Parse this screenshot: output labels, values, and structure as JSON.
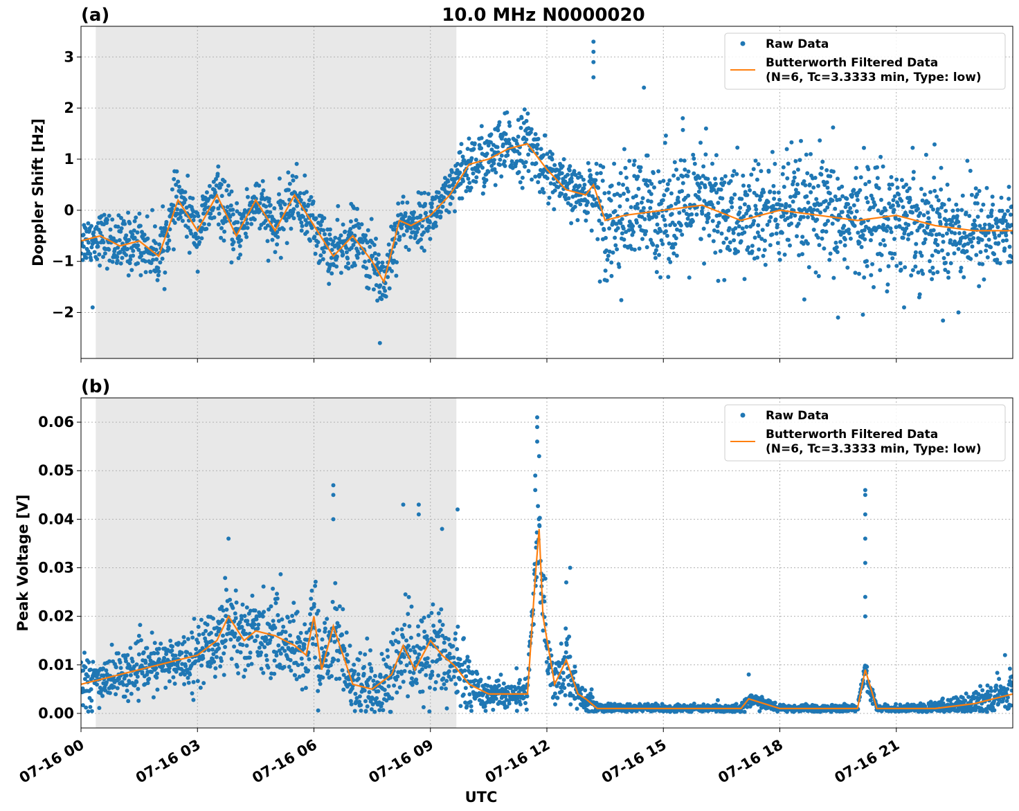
{
  "title": "10.0 MHz N0000020",
  "colors": {
    "raw": "#1f77b4",
    "filtered": "#ff7f0e",
    "night": "#e8e8e8"
  },
  "legend": {
    "raw": "Raw Data",
    "filtered_line1": "Butterworth Filtered Data",
    "filtered_line2": "(N=6, Tc=3.3333 min, Type: low)"
  },
  "chart_data": [
    {
      "type": "scatter",
      "panel_label": "(a)",
      "ylabel": "Doppler Shift [Hz]",
      "xlim_hours": [
        0,
        24
      ],
      "ylim": [
        -2.9,
        3.6
      ],
      "yticks": [
        -2,
        -1,
        0,
        1,
        2,
        3
      ],
      "ytick_labels": [
        "−2",
        "−1",
        "0",
        "1",
        "2",
        "3"
      ],
      "grid": true,
      "legend_position": "top-right",
      "shaded_interval_hours": [
        0.38,
        9.67
      ],
      "series": [
        {
          "name": "Butterworth Filtered Data",
          "kind": "line",
          "x_hours": [
            0,
            0.5,
            1,
            1.5,
            2,
            2.5,
            3,
            3.5,
            4,
            4.5,
            5,
            5.5,
            6,
            6.5,
            7,
            7.5,
            7.8,
            8.2,
            8.5,
            9,
            9.5,
            10,
            10.5,
            11,
            11.5,
            12,
            12.5,
            13,
            13.2,
            13.5,
            14,
            15,
            16,
            17,
            18,
            19,
            20,
            21,
            22,
            23,
            24
          ],
          "y": [
            -0.6,
            -0.5,
            -0.7,
            -0.6,
            -0.9,
            0.2,
            -0.4,
            0.3,
            -0.5,
            0.2,
            -0.4,
            0.3,
            -0.3,
            -0.9,
            -0.5,
            -1.0,
            -1.4,
            -0.2,
            -0.3,
            -0.1,
            0.3,
            0.9,
            1.0,
            1.2,
            1.3,
            0.8,
            0.4,
            0.3,
            0.5,
            -0.2,
            -0.1,
            0.0,
            0.1,
            -0.2,
            0.0,
            -0.1,
            -0.2,
            -0.1,
            -0.3,
            -0.4,
            -0.4
          ]
        },
        {
          "name": "Raw Data",
          "kind": "scatter",
          "spread": [
            0.3,
            0.3,
            0.35,
            0.35,
            0.35,
            0.35,
            0.35,
            0.35,
            0.35,
            0.35,
            0.35,
            0.35,
            0.35,
            0.35,
            0.35,
            0.4,
            0.45,
            0.35,
            0.3,
            0.3,
            0.3,
            0.4,
            0.4,
            0.4,
            0.4,
            0.35,
            0.3,
            0.3,
            0.4,
            0.7,
            0.7,
            0.7,
            0.7,
            0.7,
            0.7,
            0.7,
            0.7,
            0.7,
            0.7,
            0.6,
            0.5
          ],
          "outliers": [
            [
              13.2,
              3.3
            ],
            [
              13.2,
              3.1
            ],
            [
              13.2,
              2.9
            ],
            [
              13.2,
              2.6
            ],
            [
              14.5,
              2.4
            ],
            [
              15.5,
              1.8
            ],
            [
              16.1,
              1.6
            ],
            [
              19.5,
              -2.1
            ],
            [
              21.2,
              -1.9
            ],
            [
              22.6,
              -2.0
            ],
            [
              0.3,
              -1.9
            ],
            [
              7.7,
              -2.6
            ]
          ]
        }
      ]
    },
    {
      "type": "scatter",
      "panel_label": "(b)",
      "xlabel": "UTC",
      "ylabel": "Peak Voltage [V]",
      "xlim_hours": [
        0,
        24
      ],
      "ylim": [
        -0.003,
        0.065
      ],
      "yticks": [
        0.0,
        0.01,
        0.02,
        0.03,
        0.04,
        0.05,
        0.06
      ],
      "ytick_labels": [
        "0.00",
        "0.01",
        "0.02",
        "0.03",
        "0.04",
        "0.05",
        "0.06"
      ],
      "xticks_hours": [
        0,
        3,
        6,
        9,
        12,
        15,
        18,
        21
      ],
      "xtick_labels": [
        "07-16 00",
        "07-16 03",
        "07-16 06",
        "07-16 09",
        "07-16 12",
        "07-16 15",
        "07-16 18",
        "07-16 21"
      ],
      "grid": true,
      "legend_position": "top-right",
      "shaded_interval_hours": [
        0.38,
        9.67
      ],
      "series": [
        {
          "name": "Butterworth Filtered Data",
          "kind": "line",
          "x_hours": [
            0,
            0.5,
            1,
            1.5,
            2,
            2.5,
            3,
            3.5,
            3.8,
            4.2,
            4.5,
            5,
            5.5,
            5.8,
            6,
            6.2,
            6.5,
            7,
            7.5,
            8,
            8.3,
            8.6,
            9,
            9.3,
            9.6,
            10,
            10.5,
            11,
            11.5,
            11.7,
            11.8,
            11.9,
            12.2,
            12.5,
            12.8,
            13,
            13.3,
            14,
            15,
            16,
            17,
            17.2,
            18,
            19,
            20,
            20.2,
            20.5,
            21,
            22,
            23,
            24
          ],
          "y": [
            0.006,
            0.007,
            0.008,
            0.009,
            0.01,
            0.011,
            0.012,
            0.015,
            0.02,
            0.015,
            0.017,
            0.016,
            0.014,
            0.012,
            0.02,
            0.009,
            0.018,
            0.006,
            0.005,
            0.008,
            0.014,
            0.009,
            0.015,
            0.012,
            0.01,
            0.006,
            0.004,
            0.004,
            0.004,
            0.028,
            0.038,
            0.02,
            0.006,
            0.011,
            0.004,
            0.003,
            0.001,
            0.001,
            0.001,
            0.001,
            0.001,
            0.003,
            0.001,
            0.001,
            0.001,
            0.009,
            0.001,
            0.001,
            0.001,
            0.002,
            0.004
          ]
        },
        {
          "name": "Raw Data",
          "kind": "scatter",
          "spread": [
            0.003,
            0.003,
            0.003,
            0.003,
            0.003,
            0.003,
            0.004,
            0.005,
            0.006,
            0.005,
            0.005,
            0.005,
            0.005,
            0.005,
            0.006,
            0.005,
            0.006,
            0.004,
            0.004,
            0.005,
            0.006,
            0.006,
            0.006,
            0.006,
            0.005,
            0.004,
            0.002,
            0.002,
            0.002,
            0.005,
            0.007,
            0.005,
            0.003,
            0.004,
            0.002,
            0.002,
            0.0005,
            0.0005,
            0.0005,
            0.0005,
            0.0005,
            0.001,
            0.0005,
            0.0005,
            0.0005,
            0.002,
            0.0005,
            0.0005,
            0.0008,
            0.0015,
            0.003
          ],
          "outliers": [
            [
              11.75,
              0.061
            ],
            [
              11.75,
              0.059
            ],
            [
              11.75,
              0.056
            ],
            [
              11.8,
              0.053
            ],
            [
              11.7,
              0.049
            ],
            [
              11.7,
              0.046
            ],
            [
              6.5,
              0.047
            ],
            [
              6.5,
              0.045
            ],
            [
              6.5,
              0.04
            ],
            [
              8.3,
              0.043
            ],
            [
              8.7,
              0.043
            ],
            [
              8.7,
              0.041
            ],
            [
              9.3,
              0.038
            ],
            [
              9.7,
              0.042
            ],
            [
              3.8,
              0.036
            ],
            [
              20.2,
              0.046
            ],
            [
              20.2,
              0.045
            ],
            [
              20.2,
              0.041
            ],
            [
              20.2,
              0.036
            ],
            [
              20.2,
              0.031
            ],
            [
              20.2,
              0.024
            ],
            [
              20.2,
              0.02
            ],
            [
              12.6,
              0.03
            ],
            [
              12.5,
              0.027
            ],
            [
              23.8,
              0.012
            ],
            [
              17.2,
              0.008
            ]
          ]
        }
      ]
    }
  ]
}
